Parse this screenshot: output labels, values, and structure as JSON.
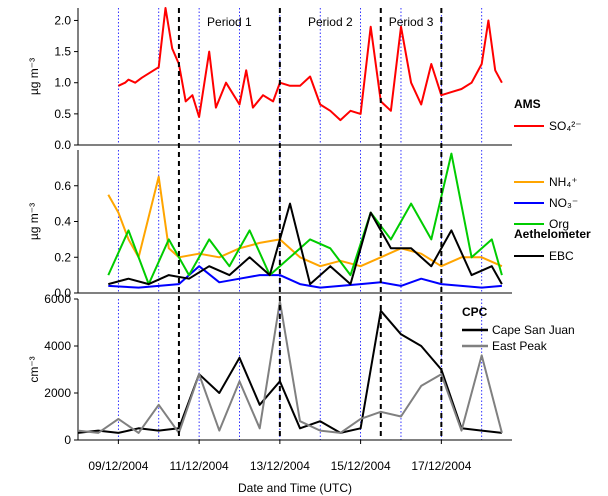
{
  "xlabel": "Date and Time (UTC)",
  "x_ticks": [
    "09/12/2004",
    "11/12/2004",
    "13/12/2004",
    "15/12/2004",
    "17/12/2004"
  ],
  "x_range": [
    "2004-12-08T00:00",
    "2004-12-18T18:00"
  ],
  "periods": {
    "boundaries": [
      "2004-12-10T12:00",
      "2004-12-13T00:00",
      "2004-12-15T12:00",
      "2004-12-17T00:00"
    ],
    "labels": [
      "Period 1",
      "Period 2",
      "Period 3"
    ]
  },
  "colors": {
    "so4": "#ff0000",
    "nh4": "#ffa500",
    "no3": "#0000ff",
    "org": "#00cc00",
    "ebc": "#000000",
    "csj": "#000000",
    "ep": "#808080",
    "day_grid": "#0000ff"
  },
  "chart_data": [
    {
      "type": "line",
      "ylabel": "µg m⁻³",
      "ylim": [
        0,
        2.2
      ],
      "y_ticks": [
        "0.0",
        "0.5",
        "1.0",
        "1.5",
        "2.0"
      ],
      "legend": {
        "group": "AMS",
        "entries": [
          "SO₄²⁻"
        ]
      },
      "series": [
        {
          "name": "SO₄²⁻",
          "x": [
            "2004-12-09T00:00",
            "2004-12-09T04:00",
            "2004-12-09T06:00",
            "2004-12-09T10:00",
            "2004-12-09T14:00",
            "2004-12-10T00:00",
            "2004-12-10T04:00",
            "2004-12-10T08:00",
            "2004-12-10T12:00",
            "2004-12-10T16:00",
            "2004-12-10T20:00",
            "2004-12-11T00:00",
            "2004-12-11T06:00",
            "2004-12-11T10:00",
            "2004-12-11T16:00",
            "2004-12-12T00:00",
            "2004-12-12T04:00",
            "2004-12-12T08:00",
            "2004-12-12T14:00",
            "2004-12-12T20:00",
            "2004-12-13T00:00",
            "2004-12-13T06:00",
            "2004-12-13T12:00",
            "2004-12-13T18:00",
            "2004-12-14T00:00",
            "2004-12-14T06:00",
            "2004-12-14T12:00",
            "2004-12-14T18:00",
            "2004-12-15T00:00",
            "2004-12-15T06:00",
            "2004-12-15T12:00",
            "2004-12-15T18:00",
            "2004-12-16T00:00",
            "2004-12-16T06:00",
            "2004-12-16T12:00",
            "2004-12-16T18:00",
            "2004-12-17T00:00",
            "2004-12-17T06:00",
            "2004-12-17T12:00",
            "2004-12-17T18:00",
            "2004-12-18T00:00",
            "2004-12-18T04:00",
            "2004-12-18T08:00",
            "2004-12-18T12:00"
          ],
          "values": [
            0.95,
            1.0,
            1.05,
            1.0,
            1.08,
            1.25,
            2.2,
            1.55,
            1.3,
            0.7,
            0.8,
            0.45,
            1.5,
            0.6,
            1.0,
            0.65,
            1.2,
            0.6,
            0.8,
            0.7,
            1.0,
            0.95,
            0.95,
            1.1,
            0.65,
            0.55,
            0.4,
            0.55,
            0.5,
            1.9,
            0.7,
            0.55,
            1.9,
            1.0,
            0.65,
            1.3,
            0.8,
            0.85,
            0.9,
            1.0,
            1.3,
            2.0,
            1.2,
            1.0
          ]
        }
      ]
    },
    {
      "type": "line",
      "ylabel": "µg m⁻³",
      "ylim": [
        0,
        0.8
      ],
      "y_ticks": [
        "0.0",
        "0.2",
        "0.4",
        "0.6"
      ],
      "legend": {
        "entries": [
          "NH₄⁺",
          "NO₃⁻",
          "Org"
        ],
        "group2": "Aethelometer",
        "entries2": [
          "EBC"
        ]
      },
      "series": [
        {
          "name": "NH₄⁺",
          "x": [
            "2004-12-08T18:00",
            "2004-12-09T00:00",
            "2004-12-09T06:00",
            "2004-12-09T12:00",
            "2004-12-10T00:00",
            "2004-12-10T06:00",
            "2004-12-10T12:00",
            "2004-12-11T00:00",
            "2004-12-11T12:00",
            "2004-12-12T00:00",
            "2004-12-12T12:00",
            "2004-12-13T00:00",
            "2004-12-13T12:00",
            "2004-12-14T00:00",
            "2004-12-14T12:00",
            "2004-12-15T00:00",
            "2004-12-15T12:00",
            "2004-12-16T00:00",
            "2004-12-16T12:00",
            "2004-12-17T00:00",
            "2004-12-17T12:00",
            "2004-12-18T00:00",
            "2004-12-18T12:00"
          ],
          "values": [
            0.55,
            0.45,
            0.3,
            0.2,
            0.65,
            0.25,
            0.2,
            0.22,
            0.2,
            0.25,
            0.28,
            0.3,
            0.2,
            0.15,
            0.18,
            0.15,
            0.2,
            0.25,
            0.22,
            0.15,
            0.2,
            0.2,
            0.15
          ]
        },
        {
          "name": "NO₃⁻",
          "x": [
            "2004-12-08T18:00",
            "2004-12-09T12:00",
            "2004-12-10T12:00",
            "2004-12-11T00:00",
            "2004-12-11T12:00",
            "2004-12-12T00:00",
            "2004-12-12T12:00",
            "2004-12-13T00:00",
            "2004-12-13T12:00",
            "2004-12-14T00:00",
            "2004-12-14T12:00",
            "2004-12-15T00:00",
            "2004-12-15T12:00",
            "2004-12-16T00:00",
            "2004-12-16T12:00",
            "2004-12-17T00:00",
            "2004-12-17T12:00",
            "2004-12-18T00:00",
            "2004-12-18T12:00"
          ],
          "values": [
            0.04,
            0.03,
            0.05,
            0.15,
            0.06,
            0.08,
            0.1,
            0.1,
            0.05,
            0.03,
            0.04,
            0.05,
            0.06,
            0.04,
            0.08,
            0.05,
            0.04,
            0.03,
            0.04
          ]
        },
        {
          "name": "Org",
          "x": [
            "2004-12-08T18:00",
            "2004-12-09T06:00",
            "2004-12-09T18:00",
            "2004-12-10T06:00",
            "2004-12-10T18:00",
            "2004-12-11T06:00",
            "2004-12-11T18:00",
            "2004-12-12T06:00",
            "2004-12-12T18:00",
            "2004-12-13T06:00",
            "2004-12-13T18:00",
            "2004-12-14T06:00",
            "2004-12-14T18:00",
            "2004-12-15T06:00",
            "2004-12-15T18:00",
            "2004-12-16T06:00",
            "2004-12-16T18:00",
            "2004-12-17T06:00",
            "2004-12-17T18:00",
            "2004-12-18T06:00",
            "2004-12-18T12:00"
          ],
          "values": [
            0.1,
            0.35,
            0.05,
            0.3,
            0.1,
            0.3,
            0.15,
            0.35,
            0.1,
            0.2,
            0.3,
            0.25,
            0.1,
            0.45,
            0.3,
            0.5,
            0.3,
            0.78,
            0.2,
            0.3,
            0.1
          ]
        },
        {
          "name": "EBC",
          "x": [
            "2004-12-08T18:00",
            "2004-12-09T06:00",
            "2004-12-09T18:00",
            "2004-12-10T06:00",
            "2004-12-10T18:00",
            "2004-12-11T06:00",
            "2004-12-11T18:00",
            "2004-12-12T06:00",
            "2004-12-12T18:00",
            "2004-12-13T06:00",
            "2004-12-13T18:00",
            "2004-12-14T06:00",
            "2004-12-14T18:00",
            "2004-12-15T06:00",
            "2004-12-15T18:00",
            "2004-12-16T06:00",
            "2004-12-16T18:00",
            "2004-12-17T06:00",
            "2004-12-17T18:00",
            "2004-12-18T06:00",
            "2004-12-18T12:00"
          ],
          "values": [
            0.05,
            0.08,
            0.05,
            0.1,
            0.08,
            0.15,
            0.1,
            0.2,
            0.1,
            0.5,
            0.05,
            0.15,
            0.05,
            0.45,
            0.25,
            0.25,
            0.15,
            0.35,
            0.1,
            0.15,
            0.05
          ]
        }
      ]
    },
    {
      "type": "line",
      "ylabel": "cm⁻³",
      "ylim": [
        0,
        6000
      ],
      "y_ticks": [
        "0",
        "2000",
        "4000",
        "6000"
      ],
      "legend": {
        "group": "CPC",
        "entries": [
          "Cape San Juan",
          "East Peak"
        ]
      },
      "series": [
        {
          "name": "Cape San Juan",
          "x": [
            "2004-12-08T00:00",
            "2004-12-08T12:00",
            "2004-12-09T00:00",
            "2004-12-09T12:00",
            "2004-12-10T00:00",
            "2004-12-10T12:00",
            "2004-12-11T00:00",
            "2004-12-11T12:00",
            "2004-12-12T00:00",
            "2004-12-12T12:00",
            "2004-12-13T00:00",
            "2004-12-13T12:00",
            "2004-12-14T00:00",
            "2004-12-14T12:00",
            "2004-12-15T00:00",
            "2004-12-15T12:00",
            "2004-12-16T00:00",
            "2004-12-16T12:00",
            "2004-12-17T00:00",
            "2004-12-17T12:00",
            "2004-12-18T00:00",
            "2004-12-18T12:00"
          ],
          "values": [
            300,
            400,
            300,
            500,
            400,
            500,
            2800,
            2000,
            3500,
            1500,
            2500,
            500,
            800,
            300,
            500,
            5500,
            4500,
            4000,
            3000,
            500,
            400,
            300
          ]
        },
        {
          "name": "East Peak",
          "x": [
            "2004-12-08T00:00",
            "2004-12-08T12:00",
            "2004-12-09T00:00",
            "2004-12-09T12:00",
            "2004-12-10T00:00",
            "2004-12-10T12:00",
            "2004-12-11T00:00",
            "2004-12-11T12:00",
            "2004-12-12T00:00",
            "2004-12-12T12:00",
            "2004-12-13T00:00",
            "2004-12-13T12:00",
            "2004-12-14T00:00",
            "2004-12-14T12:00",
            "2004-12-15T00:00",
            "2004-12-15T12:00",
            "2004-12-16T00:00",
            "2004-12-16T12:00",
            "2004-12-17T00:00",
            "2004-12-17T12:00",
            "2004-12-18T00:00",
            "2004-12-18T12:00"
          ],
          "values": [
            400,
            300,
            900,
            300,
            1500,
            300,
            2800,
            400,
            2500,
            500,
            5900,
            800,
            400,
            300,
            900,
            1200,
            1000,
            2300,
            2800,
            400,
            3600,
            300
          ]
        }
      ]
    }
  ]
}
